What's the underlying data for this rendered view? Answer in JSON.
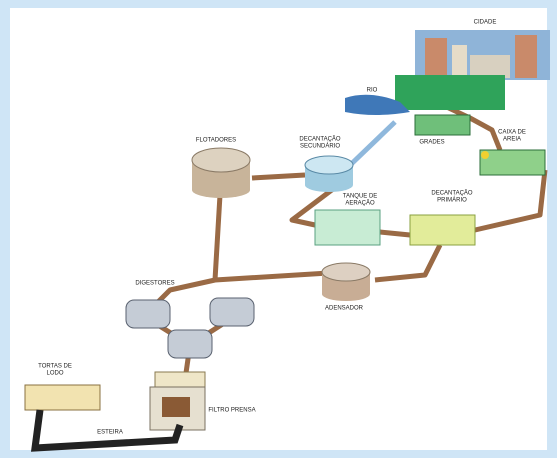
{
  "nodes": [
    {
      "lines": [
        "CIDADE"
      ]
    },
    {
      "lines": [
        "RIO"
      ]
    },
    {
      "lines": [
        "GRADES"
      ]
    },
    {
      "lines": [
        "CAIXA DE",
        "AREIA"
      ]
    },
    {
      "lines": [
        "FLOTADORES"
      ]
    },
    {
      "lines": [
        "DECANTAÇÃO",
        "SECUNDÁRIO"
      ]
    },
    {
      "lines": [
        "TANQUE DE",
        "AERAÇÃO"
      ]
    },
    {
      "lines": [
        "DECANTAÇÃO",
        "PRIMÁRIO"
      ]
    },
    {
      "lines": [
        "ADENSADOR"
      ]
    },
    {
      "lines": [
        "DIGESTORES"
      ]
    },
    {
      "lines": [
        "TORTAS DE",
        "LODO"
      ]
    },
    {
      "lines": [
        "FILTRO PRENSA"
      ]
    },
    {
      "lines": [
        "ESTEIRA"
      ]
    }
  ]
}
